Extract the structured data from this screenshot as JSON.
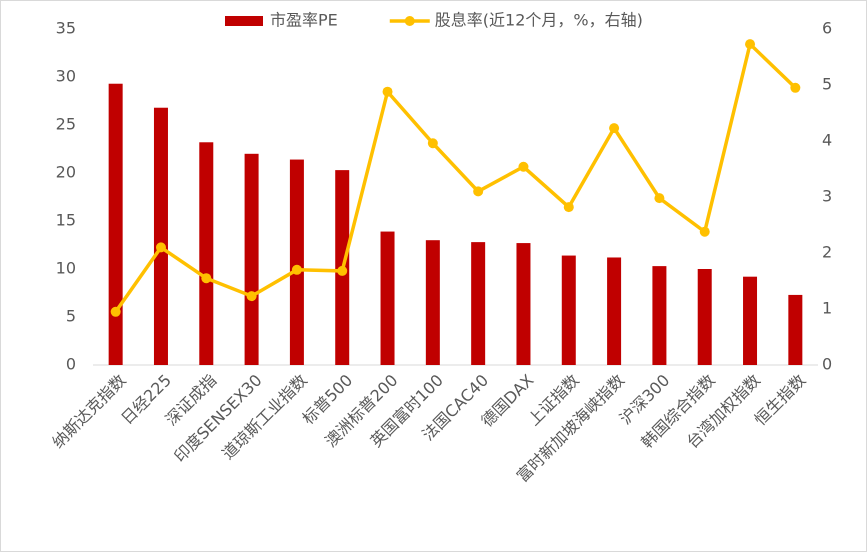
{
  "chart_data": {
    "type": "combo",
    "categories": [
      "纳斯达克指数",
      "日经225",
      "深证成指",
      "印度SENSEX30",
      "道琼斯工业指数",
      "标普500",
      "澳洲标普200",
      "英国富时100",
      "法国CAC40",
      "德国DAX",
      "上证指数",
      "富时新加坡海峡指数",
      "沪深300",
      "韩国综合指数",
      "台湾加权指数",
      "恒生指数"
    ],
    "series": [
      {
        "name": "市盈率PE",
        "type": "bar",
        "color": "#c00000",
        "axis": "y",
        "values": [
          29.3,
          26.8,
          23.2,
          22.0,
          21.4,
          20.3,
          13.9,
          13.0,
          12.8,
          12.7,
          11.4,
          11.2,
          10.3,
          10.0,
          9.2,
          7.3
        ]
      },
      {
        "name": "股息率(近12个月，%，右轴)",
        "type": "line",
        "color": "#ffc000",
        "axis": "y2",
        "values": [
          0.95,
          2.1,
          1.55,
          1.23,
          1.7,
          1.68,
          4.88,
          3.96,
          3.1,
          3.54,
          2.82,
          4.23,
          2.98,
          2.38,
          5.73,
          4.95
        ]
      }
    ],
    "ylim": [
      0,
      35
    ],
    "yticks": [
      0,
      5,
      10,
      15,
      20,
      25,
      30,
      35
    ],
    "y2lim": [
      0,
      6
    ],
    "y2ticks": [
      0,
      1,
      2,
      3,
      4,
      5,
      6
    ],
    "legend": "top",
    "grid": false
  }
}
